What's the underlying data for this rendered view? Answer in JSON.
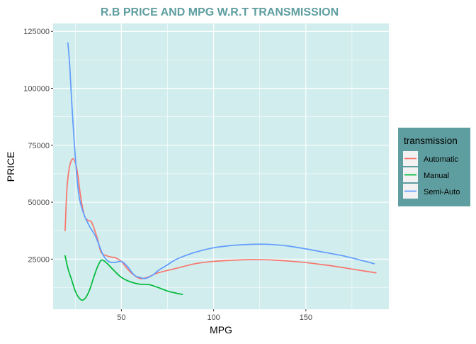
{
  "chart_data": {
    "type": "line",
    "title": "R.B PRICE AND MPG W.R.T TRANSMISSION",
    "xlabel": "MPG",
    "ylabel": "PRICE",
    "xlim": [
      13,
      195
    ],
    "ylim": [
      3000,
      128500
    ],
    "x_ticks": [
      50,
      100,
      150
    ],
    "x_tick_labels": [
      "50",
      "100",
      "150"
    ],
    "x_minor_ticks": [
      25,
      75,
      125,
      175
    ],
    "y_ticks": [
      25000,
      50000,
      75000,
      100000,
      125000
    ],
    "y_tick_labels": [
      "25000",
      "50000",
      "75000",
      "100000",
      "125000"
    ],
    "y_minor_ticks": [
      12500,
      37500,
      62500,
      87500,
      112500
    ],
    "grid": true,
    "legend": {
      "title": "transmission",
      "position": "right",
      "background": "#5f9ea0"
    },
    "colors": {
      "panel": "#d1eded",
      "title": "#5f9ea0",
      "grid": "#ffffff"
    },
    "series": [
      {
        "name": "Automatic",
        "color": "#f8766d",
        "x": [
          19.5,
          20.5,
          22,
          24,
          26,
          28,
          30,
          32,
          34,
          37,
          39,
          42,
          44,
          47,
          50,
          53,
          56,
          60,
          64,
          70,
          80,
          90,
          100,
          110,
          120,
          130,
          140,
          150,
          160,
          170,
          180,
          188
        ],
        "y": [
          37500,
          56000,
          66000,
          69000,
          64000,
          52000,
          44000,
          42000,
          41000,
          34000,
          28000,
          26500,
          26000,
          25500,
          24000,
          21000,
          18500,
          16500,
          17000,
          19000,
          21000,
          23000,
          24000,
          24500,
          24800,
          24700,
          24200,
          23500,
          22500,
          21300,
          20000,
          19000
        ]
      },
      {
        "name": "Manual",
        "color": "#00ba38",
        "x": [
          19.5,
          21,
          23,
          25,
          27,
          29,
          31,
          33,
          35,
          37,
          39,
          41,
          43,
          46,
          50,
          55,
          60,
          65,
          70,
          75,
          80,
          83
        ],
        "y": [
          26500,
          21000,
          16000,
          11000,
          8000,
          7000,
          8500,
          12000,
          17000,
          21500,
          24500,
          24000,
          22500,
          20000,
          17000,
          15000,
          14000,
          13800,
          12500,
          11000,
          10000,
          9500
        ]
      },
      {
        "name": "Semi-Auto",
        "color": "#619cff",
        "x": [
          21,
          22,
          23,
          24,
          25,
          26,
          27,
          28,
          30,
          33,
          36,
          40,
          43,
          46,
          50,
          53,
          57,
          60,
          63,
          67,
          70,
          75,
          80,
          90,
          100,
          110,
          120,
          130,
          140,
          150,
          160,
          170,
          180,
          187
        ],
        "y": [
          120000,
          110000,
          95000,
          82000,
          70000,
          60000,
          53000,
          49000,
          44000,
          39000,
          35000,
          27000,
          24000,
          23500,
          24000,
          22000,
          18000,
          17000,
          16500,
          18000,
          20000,
          22500,
          25000,
          28000,
          30000,
          31000,
          31500,
          31500,
          30800,
          29500,
          28000,
          26500,
          24500,
          23000
        ]
      }
    ]
  }
}
